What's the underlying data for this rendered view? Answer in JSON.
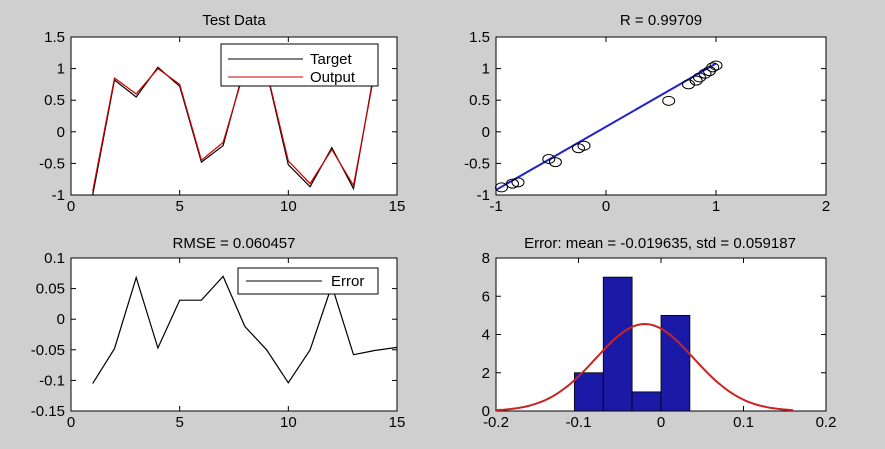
{
  "chart_data": [
    {
      "type": "line",
      "title": "Test Data",
      "xlim": [
        0,
        15
      ],
      "ylim": [
        -1,
        1.5
      ],
      "x_ticks": [
        "0",
        "5",
        "10",
        "15"
      ],
      "y_ticks": [
        "-1",
        "-0.5",
        "0",
        "0.5",
        "1",
        "1.5"
      ],
      "legend_position": "top-right",
      "grid": false,
      "x": [
        1,
        2,
        3,
        4,
        5,
        6,
        7,
        8,
        9,
        10,
        11,
        12,
        13,
        14
      ],
      "series": [
        {
          "name": "Target",
          "color": "#000000",
          "values": [
            -1.0,
            0.82,
            0.55,
            1.02,
            0.72,
            -0.48,
            -0.22,
            1.05,
            0.95,
            -0.52,
            -0.87,
            -0.25,
            -0.9,
            1.05
          ]
        },
        {
          "name": "Output",
          "color": "#cc0000",
          "values": [
            -0.94,
            0.85,
            0.6,
            1.0,
            0.75,
            -0.45,
            -0.17,
            1.0,
            0.97,
            -0.46,
            -0.82,
            -0.28,
            -0.85,
            1.0
          ]
        }
      ]
    },
    {
      "type": "scatter",
      "title": "R = 0.99709",
      "xlim": [
        -1,
        2
      ],
      "ylim": [
        -1,
        1.5
      ],
      "x_ticks": [
        "-1",
        "0",
        "1",
        "2"
      ],
      "y_ticks": [
        "-1",
        "-0.5",
        "0",
        "0.5",
        "1",
        "1.5"
      ],
      "grid": false,
      "points": [
        [
          -0.95,
          -0.88
        ],
        [
          -0.85,
          -0.82
        ],
        [
          -0.8,
          -0.8
        ],
        [
          -0.52,
          -0.43
        ],
        [
          -0.46,
          -0.48
        ],
        [
          -0.25,
          -0.26
        ],
        [
          -0.2,
          -0.22
        ],
        [
          0.57,
          0.49
        ],
        [
          0.75,
          0.75
        ],
        [
          0.82,
          0.81
        ],
        [
          0.85,
          0.86
        ],
        [
          0.9,
          0.92
        ],
        [
          0.94,
          0.96
        ],
        [
          0.97,
          1.02
        ],
        [
          1.0,
          1.05
        ]
      ],
      "fit_line": {
        "color": "#2222cc",
        "x": [
          -1,
          1
        ],
        "y": [
          -0.92,
          1.08
        ]
      },
      "marker": "circle"
    },
    {
      "type": "line",
      "title": "RMSE = 0.060457",
      "xlim": [
        0,
        15
      ],
      "ylim": [
        -0.15,
        0.1
      ],
      "x_ticks": [
        "0",
        "5",
        "10",
        "15"
      ],
      "y_ticks": [
        "-0.15",
        "-0.1",
        "-0.05",
        "0",
        "0.05",
        "0.1"
      ],
      "legend_position": "top-right",
      "grid": false,
      "x": [
        1,
        2,
        3,
        4,
        5,
        6,
        7,
        8,
        9,
        10,
        11,
        12,
        13,
        14,
        15
      ],
      "series": [
        {
          "name": "Error",
          "color": "#000000",
          "values": [
            -0.105,
            -0.048,
            0.068,
            -0.047,
            0.031,
            0.031,
            0.07,
            -0.012,
            -0.05,
            -0.104,
            -0.05,
            0.055,
            -0.058,
            -0.051,
            -0.046
          ]
        }
      ]
    },
    {
      "type": "bar",
      "title": "Error: mean = -0.019635, std = 0.059187",
      "xlim": [
        -0.2,
        0.2
      ],
      "ylim": [
        0,
        8
      ],
      "x_ticks": [
        "-0.2",
        "-0.1",
        "0",
        "0.1",
        "0.2"
      ],
      "y_ticks": [
        "0",
        "2",
        "4",
        "6",
        "8"
      ],
      "grid": false,
      "bin_edges": [
        -0.105,
        -0.07,
        -0.035,
        0.0,
        0.035,
        0.07
      ],
      "values": [
        2,
        7,
        1,
        5,
        0
      ],
      "bar_color": "#1a1aa6",
      "normal_fit": {
        "color": "#cc2222",
        "mean": -0.019635,
        "std": 0.059187,
        "peak": 4.55,
        "x_range": [
          -0.2,
          0.16
        ]
      }
    }
  ]
}
